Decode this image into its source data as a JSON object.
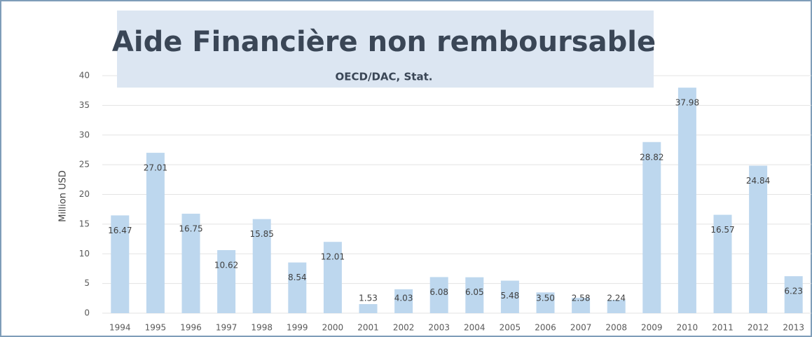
{
  "chart_data": {
    "type": "bar",
    "title": "Aide Financière non remboursable",
    "subtitle": "OECD/DAC,  Stat.",
    "y_label": "Million USD",
    "categories": [
      "1994",
      "1995",
      "1996",
      "1997",
      "1998",
      "1999",
      "2000",
      "2001",
      "2002",
      "2003",
      "2004",
      "2005",
      "2006",
      "2007",
      "2008",
      "2009",
      "2010",
      "2011",
      "2012",
      "2013"
    ],
    "values": [
      16.47,
      27.01,
      16.75,
      10.62,
      15.85,
      8.54,
      12.01,
      1.53,
      4.03,
      6.08,
      6.05,
      5.48,
      3.5,
      2.58,
      2.24,
      28.82,
      37.98,
      16.57,
      24.84,
      6.23
    ],
    "value_labels": [
      "16.47",
      "27.01",
      "16.75",
      "10.62",
      "15.85",
      "8.54",
      "12.01",
      "1.53",
      "4.03",
      "6.08",
      "6.05",
      "5.48",
      "3.50",
      "2.58",
      "2.24",
      "28.82",
      "37.98",
      "16.57",
      "24.84",
      "6.23"
    ],
    "color": "#bdd7ee",
    "ylim": [
      0,
      40
    ],
    "yticks": [
      0,
      5,
      10,
      15,
      20,
      25,
      30,
      35,
      40
    ],
    "grid": true
  }
}
